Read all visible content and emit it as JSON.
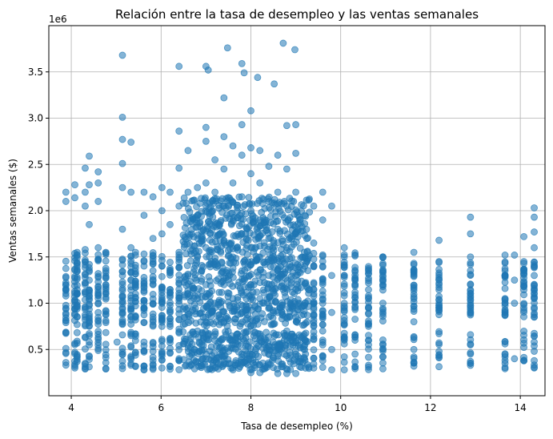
{
  "chart_data": {
    "type": "scatter",
    "title": "Relación entre la tasa de desempleo y las ventas semanales",
    "xlabel": "Tasa de desempleo (%)",
    "ylabel": "Ventas semanales ($)",
    "y_offset_label": "1e6",
    "xlim": [
      3.5,
      14.55
    ],
    "ylim": [
      0.0,
      4.0
    ],
    "x_ticks": [
      4,
      6,
      8,
      10,
      12,
      14
    ],
    "x_tick_labels": [
      "4",
      "6",
      "8",
      "10",
      "12",
      "14"
    ],
    "y_ticks": [
      0.5,
      1.0,
      1.5,
      2.0,
      2.5,
      3.0,
      3.5
    ],
    "y_tick_labels": [
      "0.5",
      "1.0",
      "1.5",
      "2.0",
      "2.5",
      "3.0",
      "3.5"
    ],
    "y_units": "millions of dollars (×1e6)",
    "grid": true,
    "marker_color": "#1f77b4",
    "marker_alpha": 0.55,
    "x_columns": [
      3.88,
      4.08,
      4.13,
      4.31,
      4.4,
      4.6,
      4.77,
      5.14,
      5.33,
      5.43,
      5.62,
      5.82,
      6.02,
      6.2,
      6.4,
      6.6,
      6.81,
      7.0,
      7.2,
      7.4,
      7.6,
      7.8,
      8.0,
      8.2,
      8.4,
      8.6,
      8.8,
      9.0,
      9.2,
      9.4,
      9.6,
      10.08,
      10.32,
      10.62,
      10.94,
      11.63,
      12.19,
      12.89,
      13.66,
      14.08,
      14.31
    ],
    "points": [
      [
        3.88,
        2.2
      ],
      [
        3.88,
        2.1
      ],
      [
        4.08,
        2.28
      ],
      [
        4.08,
        2.14
      ],
      [
        4.13,
        1.55
      ],
      [
        4.13,
        1.4
      ],
      [
        4.13,
        1.28
      ],
      [
        4.13,
        1.1
      ],
      [
        4.13,
        0.98
      ],
      [
        4.13,
        0.85
      ],
      [
        4.31,
        2.46
      ],
      [
        4.31,
        2.2
      ],
      [
        4.31,
        2.05
      ],
      [
        4.31,
        1.58
      ],
      [
        4.31,
        1.2
      ],
      [
        4.31,
        0.95
      ],
      [
        4.4,
        2.59
      ],
      [
        4.4,
        2.28
      ],
      [
        4.4,
        1.85
      ],
      [
        4.4,
        1.42
      ],
      [
        4.4,
        1.05
      ],
      [
        4.6,
        2.42
      ],
      [
        4.6,
        2.3
      ],
      [
        4.6,
        2.1
      ],
      [
        4.6,
        1.6
      ],
      [
        4.6,
        1.32
      ],
      [
        4.6,
        1.0
      ],
      [
        4.77,
        1.55
      ],
      [
        4.77,
        1.2
      ],
      [
        4.77,
        0.92
      ],
      [
        5.14,
        3.68
      ],
      [
        5.14,
        3.01
      ],
      [
        5.14,
        2.77
      ],
      [
        5.14,
        2.51
      ],
      [
        5.14,
        2.25
      ],
      [
        5.14,
        1.8
      ],
      [
        5.14,
        1.3
      ],
      [
        5.14,
        0.9
      ],
      [
        5.02,
        0.58
      ],
      [
        5.14,
        0.78
      ],
      [
        5.33,
        2.74
      ],
      [
        5.33,
        2.2
      ],
      [
        5.33,
        1.6
      ],
      [
        5.33,
        1.25
      ],
      [
        5.33,
        0.95
      ],
      [
        5.33,
        0.65
      ],
      [
        5.33,
        0.33
      ],
      [
        5.43,
        1.55
      ],
      [
        5.43,
        1.1
      ],
      [
        5.43,
        0.32
      ],
      [
        5.62,
        2.2
      ],
      [
        5.62,
        1.95
      ],
      [
        5.62,
        1.45
      ],
      [
        5.62,
        0.95
      ],
      [
        5.62,
        0.58
      ],
      [
        5.62,
        0.32
      ],
      [
        5.82,
        2.15
      ],
      [
        5.82,
        1.7
      ],
      [
        5.82,
        1.2
      ],
      [
        5.82,
        0.85
      ],
      [
        5.82,
        0.48
      ],
      [
        5.82,
        0.3
      ],
      [
        6.02,
        2.25
      ],
      [
        6.02,
        2.0
      ],
      [
        6.02,
        1.75
      ],
      [
        6.02,
        1.4
      ],
      [
        6.02,
        1.05
      ],
      [
        6.02,
        0.75
      ],
      [
        6.02,
        0.45
      ],
      [
        6.02,
        0.3
      ],
      [
        6.2,
        2.2
      ],
      [
        6.2,
        1.85
      ],
      [
        6.2,
        1.35
      ],
      [
        6.2,
        0.9
      ],
      [
        6.2,
        0.62
      ],
      [
        6.2,
        0.32
      ],
      [
        6.4,
        3.56
      ],
      [
        6.4,
        2.86
      ],
      [
        6.4,
        2.46
      ],
      [
        6.4,
        2.05
      ],
      [
        6.4,
        1.55
      ],
      [
        6.4,
        1.15
      ],
      [
        6.4,
        0.72
      ],
      [
        6.4,
        0.4
      ],
      [
        6.6,
        2.65
      ],
      [
        6.6,
        2.2
      ],
      [
        6.6,
        1.75
      ],
      [
        6.6,
        1.3
      ],
      [
        6.6,
        0.95
      ],
      [
        6.6,
        0.55
      ],
      [
        6.81,
        2.25
      ],
      [
        6.81,
        1.95
      ],
      [
        6.81,
        1.5
      ],
      [
        6.81,
        1.05
      ],
      [
        6.81,
        0.7
      ],
      [
        6.81,
        0.36
      ],
      [
        7.0,
        3.56
      ],
      [
        7.0,
        2.9
      ],
      [
        7.0,
        2.75
      ],
      [
        7.0,
        2.3
      ],
      [
        7.0,
        2.05
      ],
      [
        7.0,
        1.6
      ],
      [
        7.0,
        1.2
      ],
      [
        7.0,
        0.8
      ],
      [
        7.0,
        0.4
      ],
      [
        7.05,
        3.52
      ],
      [
        7.2,
        2.55
      ],
      [
        7.2,
        2.2
      ],
      [
        7.2,
        1.85
      ],
      [
        7.2,
        1.45
      ],
      [
        7.2,
        1.0
      ],
      [
        7.2,
        0.6
      ],
      [
        7.2,
        0.3
      ],
      [
        7.4,
        3.22
      ],
      [
        7.4,
        2.8
      ],
      [
        7.4,
        2.45
      ],
      [
        7.4,
        2.05
      ],
      [
        7.4,
        1.65
      ],
      [
        7.4,
        1.2
      ],
      [
        7.4,
        0.8
      ],
      [
        7.4,
        0.35
      ],
      [
        7.48,
        3.76
      ],
      [
        7.6,
        2.7
      ],
      [
        7.6,
        2.3
      ],
      [
        7.6,
        1.9
      ],
      [
        7.6,
        1.5
      ],
      [
        7.6,
        1.05
      ],
      [
        7.6,
        0.6
      ],
      [
        7.6,
        0.28
      ],
      [
        7.8,
        3.59
      ],
      [
        7.85,
        3.49
      ],
      [
        7.8,
        2.93
      ],
      [
        7.8,
        2.6
      ],
      [
        7.8,
        2.15
      ],
      [
        7.8,
        1.75
      ],
      [
        7.8,
        1.35
      ],
      [
        7.8,
        0.9
      ],
      [
        7.8,
        0.45
      ],
      [
        8.0,
        3.08
      ],
      [
        8.0,
        2.68
      ],
      [
        8.0,
        2.4
      ],
      [
        8.0,
        2.0
      ],
      [
        8.0,
        1.6
      ],
      [
        8.0,
        1.2
      ],
      [
        8.0,
        0.75
      ],
      [
        8.0,
        0.25
      ],
      [
        8.15,
        3.44
      ],
      [
        8.2,
        2.65
      ],
      [
        8.2,
        2.3
      ],
      [
        8.2,
        1.9
      ],
      [
        8.2,
        1.5
      ],
      [
        8.2,
        1.05
      ],
      [
        8.2,
        0.6
      ],
      [
        8.2,
        0.25
      ],
      [
        8.4,
        2.48
      ],
      [
        8.4,
        2.1
      ],
      [
        8.4,
        1.7
      ],
      [
        8.4,
        1.3
      ],
      [
        8.4,
        0.85
      ],
      [
        8.4,
        0.45
      ],
      [
        8.52,
        3.37
      ],
      [
        8.6,
        2.6
      ],
      [
        8.6,
        2.2
      ],
      [
        8.6,
        1.8
      ],
      [
        8.6,
        1.35
      ],
      [
        8.6,
        0.9
      ],
      [
        8.6,
        0.52
      ],
      [
        8.6,
        0.24
      ],
      [
        8.72,
        3.81
      ],
      [
        8.8,
        2.92
      ],
      [
        8.8,
        2.45
      ],
      [
        8.8,
        2.05
      ],
      [
        8.8,
        1.6
      ],
      [
        8.8,
        1.15
      ],
      [
        8.8,
        0.7
      ],
      [
        8.8,
        0.24
      ],
      [
        8.98,
        3.74
      ],
      [
        9.0,
        2.93
      ],
      [
        9.0,
        2.62
      ],
      [
        9.0,
        2.2
      ],
      [
        9.0,
        1.75
      ],
      [
        9.0,
        1.3
      ],
      [
        9.0,
        0.85
      ],
      [
        9.0,
        0.45
      ],
      [
        9.0,
        0.24
      ],
      [
        9.2,
        1.95
      ],
      [
        9.2,
        1.4
      ],
      [
        9.2,
        1.0
      ],
      [
        9.2,
        0.6
      ],
      [
        9.4,
        2.05
      ],
      [
        9.4,
        1.65
      ],
      [
        9.4,
        1.15
      ],
      [
        9.4,
        0.75
      ],
      [
        9.4,
        0.3
      ],
      [
        9.6,
        2.2
      ],
      [
        9.6,
        1.9
      ],
      [
        9.6,
        1.4
      ],
      [
        9.6,
        1.0
      ],
      [
        9.6,
        0.55
      ],
      [
        9.8,
        2.05
      ],
      [
        9.8,
        1.3
      ],
      [
        9.8,
        0.9
      ],
      [
        9.8,
        0.5
      ],
      [
        9.8,
        0.28
      ],
      [
        10.08,
        1.6
      ],
      [
        10.08,
        1.3
      ],
      [
        10.08,
        0.95
      ],
      [
        10.08,
        0.6
      ],
      [
        10.08,
        0.28
      ],
      [
        10.32,
        1.25
      ],
      [
        10.32,
        0.95
      ],
      [
        10.32,
        0.6
      ],
      [
        10.32,
        0.45
      ],
      [
        10.62,
        0.95
      ],
      [
        10.62,
        0.75
      ],
      [
        10.62,
        0.55
      ],
      [
        10.94,
        1.5
      ],
      [
        10.94,
        1.25
      ],
      [
        10.94,
        1.0
      ],
      [
        10.94,
        0.55
      ],
      [
        10.94,
        0.42
      ],
      [
        11.63,
        1.55
      ],
      [
        11.63,
        1.3
      ],
      [
        11.63,
        1.05
      ],
      [
        11.63,
        0.8
      ],
      [
        11.63,
        0.5
      ],
      [
        11.63,
        0.42
      ],
      [
        12.19,
        1.68
      ],
      [
        12.19,
        1.45
      ],
      [
        12.19,
        1.2
      ],
      [
        12.19,
        0.95
      ],
      [
        12.19,
        0.48
      ],
      [
        12.19,
        0.41
      ],
      [
        12.89,
        1.93
      ],
      [
        12.89,
        1.75
      ],
      [
        12.89,
        1.5
      ],
      [
        12.89,
        1.2
      ],
      [
        12.89,
        0.95
      ],
      [
        12.89,
        0.45
      ],
      [
        12.89,
        0.35
      ],
      [
        13.66,
        1.52
      ],
      [
        13.66,
        1.3
      ],
      [
        13.66,
        1.05
      ],
      [
        13.66,
        0.9
      ],
      [
        13.66,
        0.42
      ],
      [
        13.66,
        0.35
      ],
      [
        13.87,
        1.52
      ],
      [
        13.87,
        1.25
      ],
      [
        13.87,
        1.0
      ],
      [
        13.87,
        0.4
      ],
      [
        14.08,
        1.72
      ],
      [
        14.08,
        1.45
      ],
      [
        14.08,
        1.2
      ],
      [
        14.08,
        0.95
      ],
      [
        14.08,
        0.38
      ],
      [
        14.31,
        2.03
      ],
      [
        14.31,
        1.93
      ],
      [
        14.31,
        1.77
      ],
      [
        14.31,
        1.6
      ],
      [
        14.31,
        1.3
      ],
      [
        14.31,
        1.05
      ],
      [
        14.31,
        0.85
      ],
      [
        14.31,
        0.38
      ],
      [
        14.31,
        0.3
      ]
    ]
  }
}
